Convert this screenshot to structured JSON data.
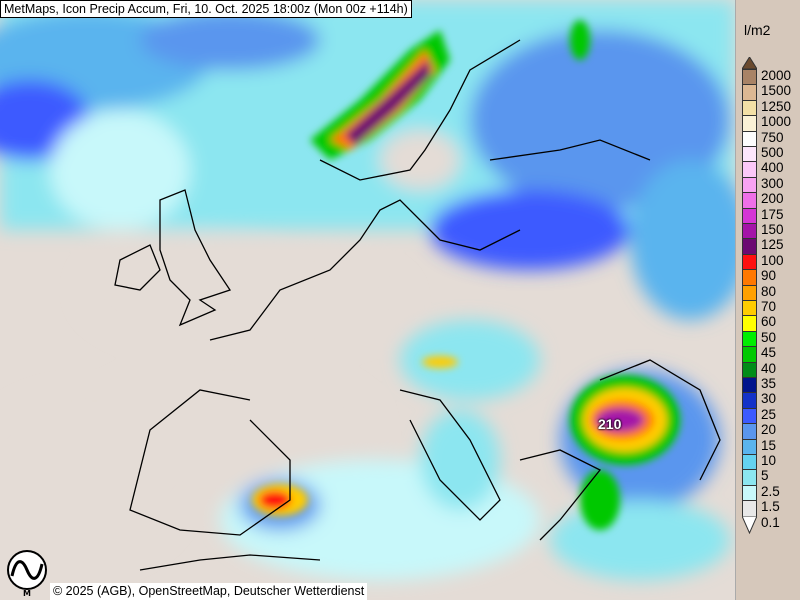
{
  "title": "MetMaps, Icon Precip Accum, Fri, 10. Oct. 2025 18:00z (Mon 00z +114h)",
  "footer": "© 2025 (AGB), OpenStreetMap, Deutscher Wetterdienst",
  "logo_text": "METMAPS",
  "map_labels": [
    {
      "text": "210"
    }
  ],
  "legend": {
    "unit": "l/m2",
    "top_arrow_color": "#6b4a2e",
    "bottom_arrow_color": "#ffffff",
    "labels": [
      "2000",
      "1500",
      "1250",
      "1000",
      "750",
      "500",
      "400",
      "300",
      "200",
      "175",
      "150",
      "125",
      "100",
      "90",
      "80",
      "70",
      "60",
      "50",
      "45",
      "40",
      "35",
      "30",
      "25",
      "20",
      "15",
      "10",
      "5",
      "2.5",
      "1.5",
      "0.1"
    ],
    "colors": [
      "#a88366",
      "#dcb893",
      "#f3e0a6",
      "#faf1d6",
      "#fdfdfd",
      "#fde6fb",
      "#fbc8f8",
      "#f8a3f3",
      "#ee6fe8",
      "#d535d5",
      "#a414a8",
      "#6c0a72",
      "#ff1010",
      "#ff7800",
      "#ffa000",
      "#ffcc00",
      "#ffff00",
      "#00ee00",
      "#00c800",
      "#008c18",
      "#00148c",
      "#1432c8",
      "#3c5aff",
      "#5a96ee",
      "#5ab4ee",
      "#64d2f0",
      "#8ce6f0",
      "#c8f8fa",
      "#e8e8e8"
    ]
  }
}
